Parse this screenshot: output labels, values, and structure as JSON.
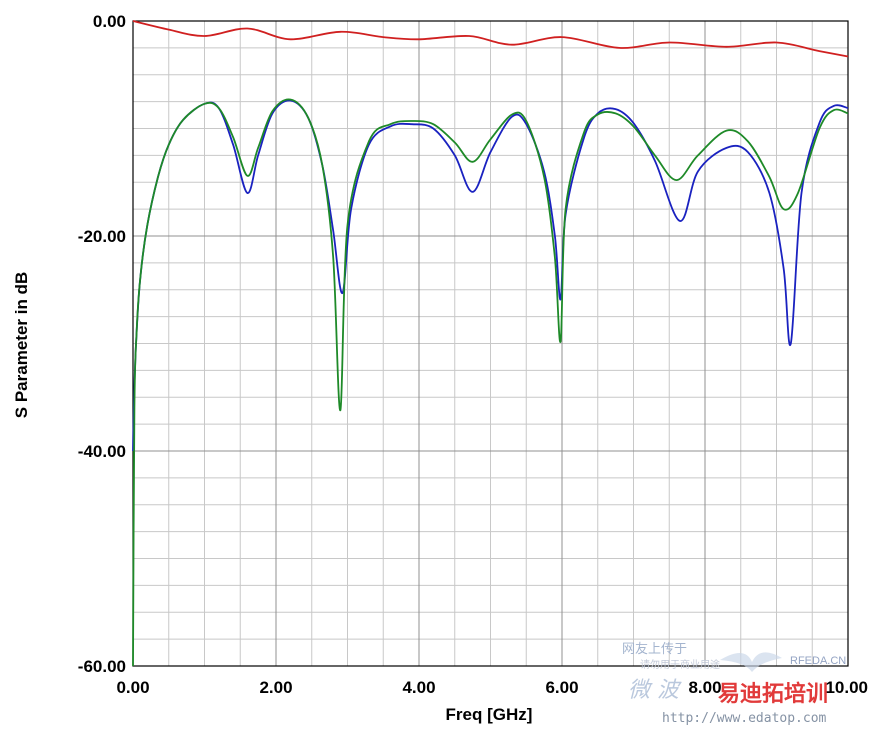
{
  "chart_data": {
    "type": "line",
    "xlabel": "Freq [GHz]",
    "ylabel": "S Parameter in dB",
    "xlim": [
      0,
      10
    ],
    "ylim": [
      -60,
      0
    ],
    "x_ticks": [
      0,
      2,
      4,
      6,
      8,
      10
    ],
    "x_tick_labels": [
      "0.00",
      "2.00",
      "4.00",
      "6.00",
      "8.00",
      "10.00"
    ],
    "y_ticks": [
      0,
      -20,
      -40,
      -60
    ],
    "y_tick_labels": [
      "0.00",
      "-20.00",
      "-40.00",
      "-60.00"
    ],
    "grid": true,
    "series": [
      {
        "color": "#d02020",
        "points": [
          [
            0,
            0
          ],
          [
            0.5,
            -0.8
          ],
          [
            1.0,
            -1.4
          ],
          [
            1.6,
            -0.7
          ],
          [
            2.2,
            -1.7
          ],
          [
            2.9,
            -1.0
          ],
          [
            3.5,
            -1.5
          ],
          [
            4.0,
            -1.7
          ],
          [
            4.7,
            -1.4
          ],
          [
            5.3,
            -2.2
          ],
          [
            6.0,
            -1.5
          ],
          [
            6.8,
            -2.5
          ],
          [
            7.5,
            -2.0
          ],
          [
            8.3,
            -2.4
          ],
          [
            9.0,
            -2.0
          ],
          [
            9.6,
            -2.8
          ],
          [
            10.0,
            -3.3
          ]
        ]
      },
      {
        "color": "#1a22c0",
        "points": [
          [
            0,
            -40
          ],
          [
            0.02,
            -34
          ],
          [
            0.05,
            -29
          ],
          [
            0.1,
            -24
          ],
          [
            0.2,
            -19
          ],
          [
            0.35,
            -14.5
          ],
          [
            0.5,
            -11.5
          ],
          [
            0.7,
            -9.2
          ],
          [
            1.0,
            -7.7
          ],
          [
            1.2,
            -8.1
          ],
          [
            1.4,
            -11.5
          ],
          [
            1.6,
            -16.0
          ],
          [
            1.75,
            -12.5
          ],
          [
            1.95,
            -8.6
          ],
          [
            2.2,
            -7.4
          ],
          [
            2.45,
            -9.0
          ],
          [
            2.65,
            -13.5
          ],
          [
            2.8,
            -19.5
          ],
          [
            2.93,
            -25.3
          ],
          [
            3.05,
            -17.5
          ],
          [
            3.3,
            -11.5
          ],
          [
            3.6,
            -9.8
          ],
          [
            3.9,
            -9.6
          ],
          [
            4.2,
            -10.0
          ],
          [
            4.5,
            -12.5
          ],
          [
            4.75,
            -15.9
          ],
          [
            5.0,
            -12.2
          ],
          [
            5.3,
            -8.9
          ],
          [
            5.5,
            -9.6
          ],
          [
            5.75,
            -14.0
          ],
          [
            5.9,
            -20.0
          ],
          [
            5.98,
            -25.9
          ],
          [
            6.05,
            -18.0
          ],
          [
            6.3,
            -11.0
          ],
          [
            6.5,
            -8.6
          ],
          [
            6.75,
            -8.2
          ],
          [
            7.0,
            -9.5
          ],
          [
            7.3,
            -13.0
          ],
          [
            7.65,
            -18.6
          ],
          [
            7.9,
            -14.0
          ],
          [
            8.3,
            -11.8
          ],
          [
            8.6,
            -12.2
          ],
          [
            8.9,
            -16.0
          ],
          [
            9.1,
            -23.0
          ],
          [
            9.2,
            -30.0
          ],
          [
            9.35,
            -16.0
          ],
          [
            9.6,
            -9.5
          ],
          [
            9.8,
            -7.9
          ],
          [
            10.0,
            -8.1
          ]
        ]
      },
      {
        "color": "#1e8a28",
        "points": [
          [
            0,
            -60
          ],
          [
            0.02,
            -36
          ],
          [
            0.05,
            -29
          ],
          [
            0.1,
            -24
          ],
          [
            0.2,
            -19
          ],
          [
            0.35,
            -14.5
          ],
          [
            0.5,
            -11.5
          ],
          [
            0.7,
            -9.2
          ],
          [
            1.0,
            -7.7
          ],
          [
            1.2,
            -8.1
          ],
          [
            1.4,
            -10.8
          ],
          [
            1.6,
            -14.4
          ],
          [
            1.75,
            -11.8
          ],
          [
            1.95,
            -8.4
          ],
          [
            2.2,
            -7.3
          ],
          [
            2.45,
            -9.0
          ],
          [
            2.65,
            -13.5
          ],
          [
            2.8,
            -22.0
          ],
          [
            2.9,
            -36.2
          ],
          [
            3.0,
            -19.0
          ],
          [
            3.3,
            -11.2
          ],
          [
            3.6,
            -9.6
          ],
          [
            3.9,
            -9.3
          ],
          [
            4.2,
            -9.6
          ],
          [
            4.5,
            -11.3
          ],
          [
            4.75,
            -13.1
          ],
          [
            5.0,
            -11.0
          ],
          [
            5.3,
            -8.7
          ],
          [
            5.5,
            -9.3
          ],
          [
            5.75,
            -14.5
          ],
          [
            5.9,
            -22.0
          ],
          [
            5.98,
            -29.8
          ],
          [
            6.05,
            -17.5
          ],
          [
            6.3,
            -10.5
          ],
          [
            6.5,
            -8.7
          ],
          [
            6.75,
            -8.6
          ],
          [
            7.0,
            -9.8
          ],
          [
            7.3,
            -12.5
          ],
          [
            7.6,
            -14.8
          ],
          [
            7.9,
            -12.5
          ],
          [
            8.3,
            -10.2
          ],
          [
            8.6,
            -11.2
          ],
          [
            8.9,
            -14.5
          ],
          [
            9.1,
            -17.5
          ],
          [
            9.3,
            -16.0
          ],
          [
            9.6,
            -10.0
          ],
          [
            9.8,
            -8.3
          ],
          [
            10.0,
            -8.6
          ]
        ]
      }
    ]
  },
  "watermark": {
    "site_line": "网友上传于",
    "small_line": "请勿用于商业用途",
    "rfeda": "RFEDA.CN",
    "brand_left": "微 波",
    "brand_right": "易迪拓培训",
    "url": "http://www.edatop.com"
  }
}
